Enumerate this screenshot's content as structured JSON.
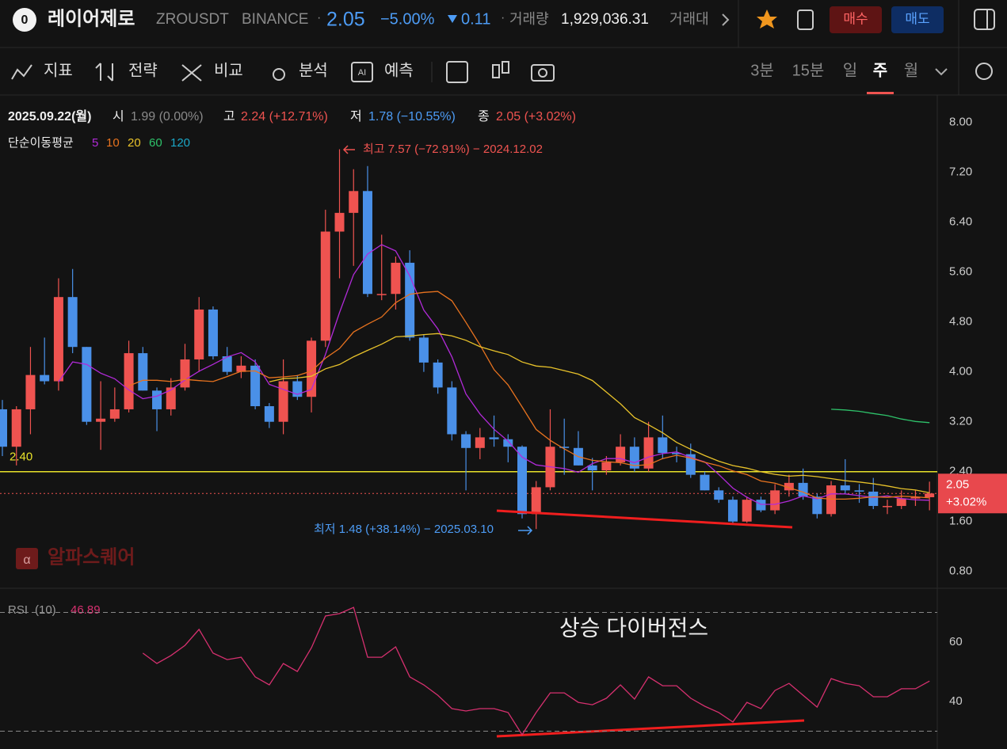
{
  "header": {
    "name": "레이어제로",
    "symbol": "ZROUSDT",
    "exchange": "BINANCE",
    "price": "2.05",
    "change_pct": "−5.00%",
    "change_abs": "0.11",
    "volume_label": "거래량",
    "volume": "1,929,036.31",
    "turnover_label": "거래대",
    "buy": "매수",
    "sell": "매도"
  },
  "toolbar": {
    "tools": [
      "지표",
      "전략",
      "비교",
      "분석",
      "예측"
    ],
    "intervals": [
      "3분",
      "15분",
      "일",
      "주",
      "월"
    ],
    "active_interval": "주"
  },
  "info": {
    "date": "2025.09.22(월)",
    "open_label": "시",
    "open": "1.99 (0.00%)",
    "high_label": "고",
    "high": "2.24 (+12.71%)",
    "low_label": "저",
    "low": "1.78 (−10.55%)",
    "close_label": "종",
    "close": "2.05 (+3.02%)"
  },
  "chart_data": {
    "type": "candlestick",
    "ma_label": "단순이동평균",
    "ma_periods": [
      5,
      10,
      20,
      60,
      120
    ],
    "ma_colors": [
      "#b12ad8",
      "#e8731f",
      "#e8c22a",
      "#2ec26a",
      "#1ba7c7"
    ],
    "up_color": "#ef5350",
    "down_color": "#4a90e8",
    "open": [
      3.4,
      2.8,
      3.4,
      3.95,
      3.85,
      5.2,
      4.4,
      3.2,
      3.25,
      3.4,
      4.3,
      3.7,
      3.4,
      3.75,
      4.2,
      5.0,
      4.25,
      4.0,
      4.1,
      3.45,
      3.2,
      3.85,
      3.6,
      4.5,
      6.25,
      6.55,
      6.9,
      5.25,
      5.25,
      5.75,
      4.55,
      4.15,
      3.75,
      3.0,
      2.78,
      2.95,
      2.92,
      2.8,
      1.72,
      2.15,
      2.8,
      2.78,
      2.5,
      2.42,
      2.55,
      2.8,
      2.45,
      2.95,
      2.7,
      2.68,
      2.35,
      2.1,
      1.95,
      1.6,
      1.95,
      1.78,
      2.1,
      2.22,
      2.0,
      1.72,
      2.18,
      2.1,
      2.08,
      1.85,
      1.85,
      1.97,
      1.99
    ],
    "high": [
      3.55,
      3.45,
      4.4,
      4.55,
      5.5,
      5.65,
      4.4,
      3.85,
      3.75,
      4.5,
      4.4,
      3.75,
      3.9,
      4.45,
      5.2,
      5.05,
      4.4,
      4.25,
      4.2,
      3.5,
      4.2,
      3.95,
      4.55,
      6.6,
      7.57,
      7.25,
      7.3,
      6.2,
      5.85,
      5.95,
      4.6,
      4.2,
      3.85,
      3.05,
      3.1,
      3.3,
      3.0,
      2.82,
      2.25,
      3.4,
      3.25,
      3.05,
      2.62,
      2.65,
      3.0,
      2.95,
      3.2,
      3.3,
      2.8,
      2.85,
      2.4,
      2.15,
      2.0,
      2.0,
      2.0,
      2.2,
      2.35,
      2.45,
      2.05,
      2.25,
      2.6,
      2.2,
      2.3,
      1.95,
      2.1,
      2.1,
      2.24
    ],
    "low": [
      2.65,
      2.5,
      3.0,
      3.8,
      3.7,
      4.3,
      3.15,
      2.75,
      3.2,
      3.35,
      3.7,
      3.05,
      3.3,
      3.7,
      4.0,
      4.2,
      3.95,
      3.9,
      3.4,
      3.1,
      3.0,
      3.55,
      3.35,
      4.4,
      5.5,
      5.7,
      5.2,
      5.15,
      5.0,
      4.5,
      4.0,
      3.65,
      2.9,
      2.1,
      2.6,
      2.8,
      2.55,
      1.65,
      1.48,
      2.1,
      2.35,
      2.5,
      2.1,
      2.35,
      2.5,
      2.4,
      2.4,
      2.6,
      2.55,
      2.3,
      2.1,
      1.9,
      1.55,
      1.58,
      1.75,
      1.72,
      2.0,
      1.95,
      1.65,
      1.68,
      2.05,
      1.9,
      1.8,
      1.72,
      1.8,
      1.85,
      1.78
    ],
    "close": [
      2.8,
      3.4,
      3.95,
      3.85,
      5.2,
      4.4,
      3.2,
      3.25,
      3.4,
      4.3,
      3.7,
      3.4,
      3.75,
      4.2,
      5.0,
      4.25,
      4.0,
      4.1,
      3.45,
      3.2,
      3.85,
      3.6,
      4.5,
      6.25,
      6.55,
      6.9,
      5.25,
      5.25,
      5.75,
      4.55,
      4.15,
      3.75,
      3.0,
      2.78,
      2.95,
      2.92,
      2.8,
      1.72,
      2.15,
      2.8,
      2.78,
      2.5,
      2.42,
      2.55,
      2.8,
      2.45,
      2.95,
      2.7,
      2.68,
      2.35,
      2.1,
      1.95,
      1.6,
      1.95,
      1.78,
      2.1,
      2.22,
      2.0,
      1.72,
      2.18,
      2.1,
      2.08,
      1.85,
      1.85,
      1.97,
      1.99,
      2.05
    ],
    "ylim": [
      0.53,
      8.44
    ],
    "yticks": [
      {
        "value": 8,
        "label": "8.00"
      },
      {
        "value": 7.2,
        "label": "7.20"
      },
      {
        "value": 6.4,
        "label": "6.40"
      },
      {
        "value": 5.6,
        "label": "5.60"
      },
      {
        "value": 4.8,
        "label": "4.80"
      },
      {
        "value": 4,
        "label": "4.00"
      },
      {
        "value": 3.2,
        "label": "3.20"
      },
      {
        "value": 2.4,
        "label": "2.40"
      },
      {
        "value": 1.6,
        "label": "1.60"
      },
      {
        "value": 0.8,
        "label": "0.80"
      }
    ],
    "grid": false,
    "hline": {
      "value": 2.4,
      "label": "2.40",
      "color": "#e8e22a"
    },
    "current_price": 2.05,
    "current_change": "+3.02%",
    "high_annotation": "최고 7.57 (−72.91%) − 2024.12.02",
    "low_annotation": "최저 1.48 (+38.14%) − 2025.03.10",
    "watermark": "알파스퀘어",
    "rsi": {
      "name": "RSI",
      "period": "(10)",
      "last": "46.89",
      "color": "#d6306f",
      "values": [
        null,
        null,
        null,
        null,
        null,
        null,
        null,
        null,
        null,
        null,
        56.3,
        52.8,
        55.5,
        58.9,
        64.3,
        56.3,
        54.1,
        54.9,
        48.3,
        45.6,
        52.8,
        50.1,
        58.1,
        68.8,
        69.6,
        71.7,
        54.9,
        54.9,
        58.4,
        48.3,
        45.6,
        42.1,
        37.6,
        36.8,
        37.6,
        37.6,
        36.3,
        28.8,
        36.3,
        42.9,
        42.9,
        39.7,
        38.9,
        41.1,
        45.6,
        40.8,
        48.3,
        45.3,
        45.3,
        41.1,
        38.4,
        36.3,
        33.1,
        39.7,
        37.6,
        43.7,
        46.1,
        42.1,
        38.1,
        47.7,
        46.1,
        45.3,
        41.6,
        41.6,
        44.3,
        44.3,
        46.89
      ],
      "ylim": [
        24,
        77.6
      ],
      "yticks": [
        40,
        60
      ],
      "levels": [
        70,
        30
      ],
      "annotation": "상승 다이버전스"
    }
  }
}
